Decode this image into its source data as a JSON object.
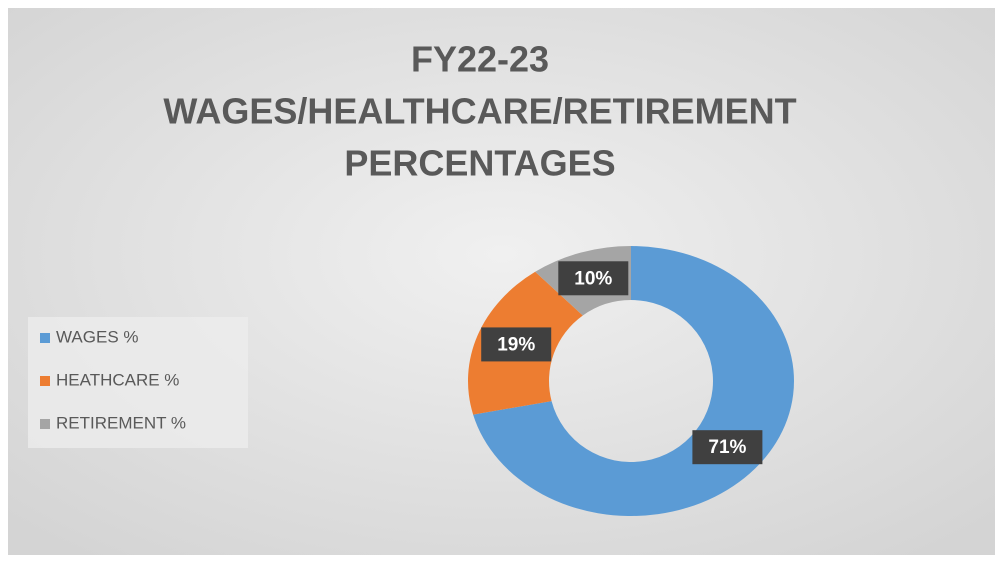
{
  "chart_data": {
    "type": "donut",
    "title": [
      "FY22-23",
      "WAGES/HEALTHCARE/RETIREMENT",
      "PERCENTAGES"
    ],
    "categories": [
      "WAGES %",
      "HEATHCARE %",
      "RETIREMENT %"
    ],
    "values": [
      71,
      19,
      10
    ],
    "value_labels": [
      "71%",
      "19%",
      "10%"
    ],
    "colors": [
      "#5b9bd5",
      "#ed7d31",
      "#a5a5a5"
    ],
    "legend": "left"
  }
}
